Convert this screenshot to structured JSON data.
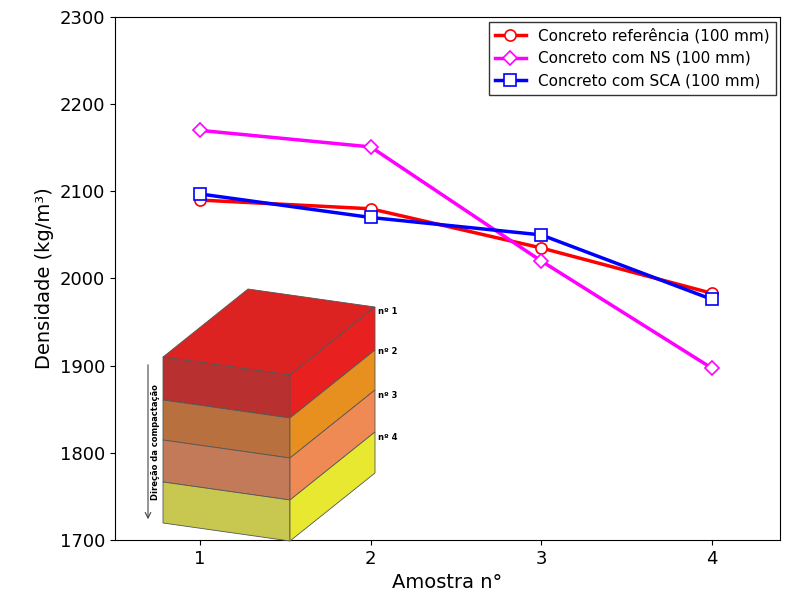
{
  "chart_data": {
    "type": "line",
    "x_label": "Amostra n°",
    "y_label": "Densidade (kg/m³)",
    "x": [
      1,
      2,
      3,
      4
    ],
    "series": [
      {
        "name": "Concreto referência (100 mm)",
        "color": "#ff0000",
        "marker": "circle",
        "values": [
          2090,
          2080,
          2035,
          1983
        ]
      },
      {
        "name": "Concreto com NS (100 mm)",
        "color": "#ff00ff",
        "marker": "diamond",
        "values": [
          2170,
          2151,
          2020,
          1897
        ]
      },
      {
        "name": "Concreto com SCA (100 mm)",
        "color": "#0000ff",
        "marker": "square",
        "values": [
          2097,
          2070,
          2050,
          1976
        ]
      }
    ],
    "xlim": [
      0.5,
      4.4
    ],
    "xticks": [
      1,
      2,
      3,
      4
    ],
    "ylim": [
      1700,
      2300
    ],
    "yticks": [
      1700,
      1800,
      1900,
      2000,
      2100,
      2200,
      2300
    ],
    "legend": "upper right",
    "annotations": [
      "nº 1",
      "nº 2",
      "nº 3",
      "nº 4",
      "Direção da compactação"
    ]
  }
}
